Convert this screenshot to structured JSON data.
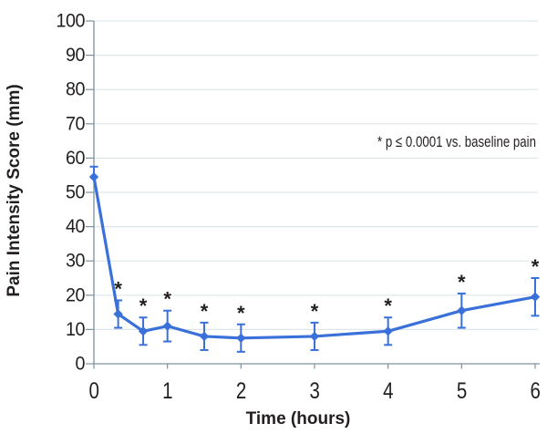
{
  "chart_data": {
    "type": "line",
    "title": "",
    "xlabel": "Time (hours)",
    "ylabel": "Pain Intensity Score (mm)",
    "annotation": "* p ≤ 0.0001 vs. baseline pain",
    "significance_marker": "*",
    "xlim": [
      0,
      6
    ],
    "ylim": [
      0,
      100
    ],
    "xticks": [
      0,
      1,
      2,
      3,
      4,
      5,
      6
    ],
    "yticks": [
      0,
      10,
      20,
      30,
      40,
      50,
      60,
      70,
      80,
      90,
      100
    ],
    "grid": "horizontal-only",
    "legend": "none",
    "series": [
      {
        "name": "Pain Intensity Score",
        "marker": "diamond",
        "x": [
          0,
          0.33,
          0.67,
          1,
          1.5,
          2,
          3,
          4,
          5,
          6
        ],
        "y": [
          54.5,
          14.5,
          9.5,
          11,
          8,
          7.5,
          8,
          9.5,
          15.5,
          19.5
        ],
        "error_up": [
          3,
          4,
          4,
          4.5,
          4,
          4,
          4,
          4,
          5,
          5.5
        ],
        "error_down": [
          0,
          4,
          4,
          4.5,
          4,
          4,
          4,
          4,
          5,
          5.5
        ],
        "significant": [
          false,
          true,
          true,
          true,
          true,
          true,
          true,
          true,
          true,
          true
        ]
      }
    ],
    "colors": {
      "line": "#3a70d9",
      "marker": "#3a70d9",
      "error_bar": "#3a70d9",
      "grid": "#dfe6e9",
      "axis": "#7d929c",
      "text": "#231f20"
    }
  }
}
